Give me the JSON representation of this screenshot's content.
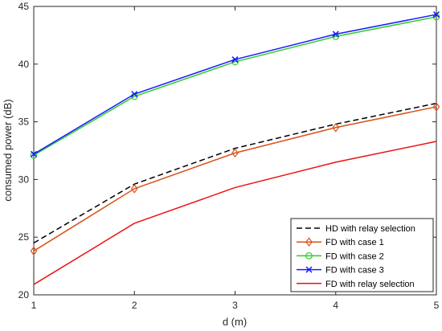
{
  "chart_data": {
    "type": "line",
    "title": "",
    "xlabel": "d (m)",
    "ylabel": "consumed power (dB)",
    "xlim": [
      1,
      5
    ],
    "ylim": [
      20,
      45
    ],
    "x": [
      1,
      2,
      3,
      4,
      5
    ],
    "xticks": [
      1,
      2,
      3,
      4,
      5
    ],
    "yticks": [
      20,
      25,
      30,
      35,
      40,
      45
    ],
    "grid": false,
    "legend_position": "bottom-right",
    "series": [
      {
        "name": "HD with relay selection",
        "color": "#000000",
        "dash": "dashed",
        "marker": "none",
        "values": [
          24.5,
          29.6,
          32.7,
          34.8,
          36.6
        ]
      },
      {
        "name": "FD with case 1",
        "color": "#d95319",
        "dash": "solid",
        "marker": "diamond",
        "values": [
          23.8,
          29.2,
          32.3,
          34.5,
          36.3
        ]
      },
      {
        "name": "FD with case 2",
        "color": "#2ecc2e",
        "dash": "solid",
        "marker": "circle",
        "values": [
          32.1,
          37.2,
          40.2,
          42.4,
          44.1
        ]
      },
      {
        "name": "FD with case 3",
        "color": "#1a1aff",
        "dash": "solid",
        "marker": "x",
        "values": [
          32.2,
          37.4,
          40.4,
          42.6,
          44.3
        ]
      },
      {
        "name": "FD with relay selection",
        "color": "#ee1111",
        "dash": "solid",
        "marker": "none",
        "values": [
          20.9,
          26.2,
          29.3,
          31.5,
          33.3
        ]
      }
    ]
  }
}
